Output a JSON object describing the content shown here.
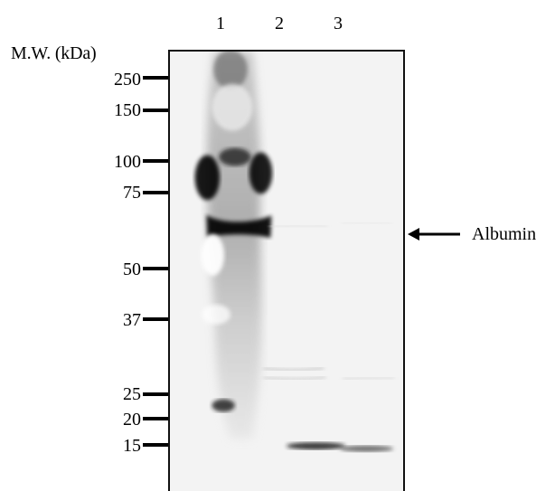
{
  "lanes": [
    "1",
    "2",
    "3"
  ],
  "molecular_weight": {
    "title": "M.W. (kDa)",
    "markers": [
      "250",
      "150",
      "100",
      "75",
      "50",
      "37",
      "25",
      "20",
      "15"
    ]
  },
  "annotation": {
    "label": "Albumin",
    "arrow_icon": "left-arrow-icon"
  },
  "colors": {
    "background": "#ffffff",
    "membrane": "#f2f2f2",
    "band": "#000000",
    "text": "#000000"
  }
}
